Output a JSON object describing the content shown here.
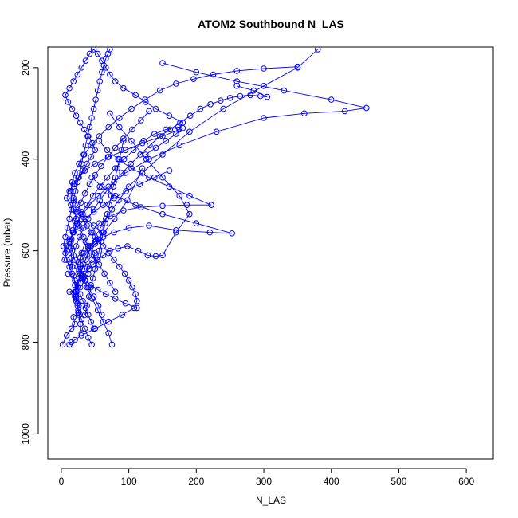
{
  "chart_data": {
    "type": "line",
    "title": "ATOM2 Southbound N_LAS",
    "xlabel": "N_LAS",
    "ylabel": "Pressure (mbar)",
    "xlim": [
      -20,
      640
    ],
    "ylim": [
      1055,
      155
    ],
    "y_reversed": true,
    "grid": false,
    "legend": "none",
    "colors": {
      "series": "#0000ff",
      "axes": "#000000"
    },
    "x_ticks": [
      0,
      100,
      200,
      300,
      400,
      500,
      600
    ],
    "x_tick_labels": [
      "0",
      "100",
      "200",
      "300",
      "400",
      "500",
      "600"
    ],
    "y_ticks": [
      200,
      400,
      600,
      800,
      1000
    ],
    "y_tick_labels": [
      "200",
      "400",
      "600",
      "800",
      "1000"
    ],
    "series": [
      {
        "x": [
          2,
          8,
          15,
          20,
          18,
          25,
          30,
          22,
          12,
          28,
          35,
          40,
          38,
          45,
          50,
          42,
          55,
          60,
          48,
          36,
          30,
          24,
          18,
          14,
          20,
          26,
          32,
          38,
          44,
          50,
          46,
          40,
          34,
          28,
          22,
          16,
          10,
          6,
          12,
          18,
          24,
          30,
          36,
          42,
          48,
          54,
          60,
          66,
          72,
          80,
          92,
          110,
          125,
          140,
          160,
          180,
          175,
          150,
          120,
          95,
          70,
          50,
          35,
          25,
          18,
          12,
          8,
          14,
          22,
          30,
          38,
          46,
          54,
          62,
          70,
          78,
          86,
          94,
          100,
          105,
          110,
          112,
          108,
          90,
          70,
          50,
          30,
          20,
          15,
          12
        ],
        "y": [
          805,
          785,
          770,
          760,
          745,
          735,
          720,
          705,
          690,
          680,
          665,
          650,
          635,
          620,
          605,
          590,
          575,
          560,
          545,
          530,
          515,
          500,
          485,
          470,
          455,
          440,
          425,
          410,
          395,
          380,
          365,
          350,
          335,
          320,
          305,
          290,
          275,
          260,
          245,
          230,
          215,
          200,
          185,
          170,
          160,
          170,
          185,
          200,
          215,
          230,
          245,
          260,
          275,
          290,
          305,
          320,
          335,
          350,
          365,
          380,
          395,
          410,
          425,
          440,
          455,
          470,
          485,
          500,
          515,
          530,
          545,
          560,
          575,
          590,
          605,
          620,
          635,
          650,
          665,
          680,
          695,
          710,
          725,
          740,
          755,
          770,
          785,
          795,
          800,
          805
        ]
      },
      {
        "x": [
          45,
          40,
          35,
          30,
          25,
          22,
          20,
          24,
          28,
          33,
          38,
          44,
          50,
          58,
          66,
          75,
          85,
          100,
          120,
          150,
          190,
          240,
          300,
          350,
          380
        ],
        "y": [
          805,
          790,
          770,
          750,
          730,
          710,
          690,
          670,
          650,
          630,
          610,
          590,
          570,
          550,
          530,
          510,
          490,
          460,
          430,
          390,
          340,
          290,
          240,
          200,
          160
        ]
      },
      {
        "x": [
          60,
          55,
          48,
          40,
          32,
          26,
          20,
          16,
          14,
          18,
          24,
          32,
          42,
          55,
          70,
          95,
          130,
          175,
          230,
          300,
          360,
          420,
          452,
          400,
          330,
          260,
          200,
          150
        ],
        "y": [
          740,
          720,
          700,
          680,
          660,
          640,
          620,
          600,
          580,
          560,
          540,
          520,
          500,
          480,
          460,
          430,
          400,
          370,
          340,
          310,
          300,
          295,
          288,
          270,
          250,
          230,
          210,
          190
        ]
      },
      {
        "x": [
          30,
          28,
          26,
          24,
          22,
          24,
          27,
          31,
          36,
          42,
          50,
          62,
          78,
          100,
          130,
          170,
          220,
          253,
          200,
          150,
          110,
          80,
          60,
          45
        ],
        "y": [
          780,
          760,
          740,
          720,
          700,
          680,
          660,
          640,
          620,
          600,
          585,
          570,
          560,
          550,
          545,
          555,
          560,
          562,
          540,
          520,
          500,
          480,
          460,
          440
        ]
      },
      {
        "x": [
          75,
          70,
          62,
          54,
          46,
          38,
          32,
          28,
          30,
          36,
          44,
          56,
          72,
          92,
          118,
          150,
          186,
          222,
          190,
          160,
          130,
          104,
          84,
          68,
          56
        ],
        "y": [
          805,
          780,
          755,
          730,
          705,
          680,
          655,
          630,
          605,
          580,
          560,
          540,
          525,
          512,
          505,
          502,
          500,
          500,
          480,
          460,
          440,
          420,
          400,
          380,
          360
        ]
      },
      {
        "x": [
          20,
          22,
          25,
          28,
          32,
          36,
          41,
          47,
          54,
          62,
          72,
          84,
          98,
          114,
          128,
          140,
          150,
          170,
          190,
          175,
          150,
          126,
          104,
          86,
          72
        ],
        "y": [
          700,
          690,
          680,
          670,
          660,
          650,
          640,
          630,
          620,
          610,
          600,
          595,
          590,
          600,
          610,
          612,
          610,
          560,
          520,
          480,
          440,
          400,
          360,
          330,
          300
        ]
      },
      {
        "x": [
          10,
          14,
          18,
          22,
          27,
          33,
          40,
          48,
          57,
          67,
          78,
          90,
          103,
          117,
          131,
          146,
          161,
          176,
          191,
          206,
          221,
          236,
          250,
          265,
          280,
          295,
          305,
          285,
          260
        ],
        "y": [
          650,
          630,
          610,
          590,
          570,
          550,
          530,
          510,
          490,
          470,
          450,
          430,
          410,
          390,
          370,
          350,
          335,
          320,
          305,
          290,
          280,
          272,
          266,
          262,
          260,
          262,
          264,
          250,
          240
        ]
      },
      {
        "x": [
          5,
          8,
          12,
          17,
          23,
          30,
          38,
          47,
          57,
          68,
          80,
          93,
          107,
          122,
          138,
          155,
          173,
          180,
          170,
          155,
          140,
          125
        ],
        "y": [
          620,
          600,
          580,
          560,
          540,
          520,
          500,
          480,
          460,
          440,
          420,
          400,
          380,
          360,
          345,
          335,
          330,
          332,
          345,
          360,
          375,
          390
        ]
      },
      {
        "x": [
          80,
          72,
          64,
          56,
          48,
          40,
          33,
          27,
          22,
          18,
          15,
          14,
          16,
          20,
          26,
          34,
          44,
          56,
          70,
          86,
          104,
          124,
          146,
          170,
          196,
          225,
          260,
          300,
          350
        ],
        "y": [
          690,
          670,
          650,
          630,
          610,
          590,
          570,
          550,
          530,
          510,
          490,
          470,
          450,
          430,
          410,
          390,
          370,
          350,
          330,
          310,
          290,
          270,
          250,
          235,
          225,
          215,
          207,
          202,
          198
        ]
      },
      {
        "x": [
          112,
          95,
          80,
          66,
          54,
          44,
          36,
          30,
          26,
          24,
          25,
          28,
          33,
          40,
          50,
          63,
          79,
          98,
          120
        ],
        "y": [
          725,
          715,
          705,
          695,
          685,
          675,
          665,
          655,
          645,
          635,
          625,
          615,
          605,
          595,
          580,
          560,
          530,
          490,
          420
        ]
      },
      {
        "x": [
          3,
          6,
          9,
          12,
          15,
          18,
          21,
          24,
          27,
          30,
          33,
          36,
          39,
          42,
          45,
          48,
          51,
          54,
          57,
          60,
          63,
          66,
          69,
          72
        ],
        "y": [
          590,
          570,
          550,
          530,
          510,
          490,
          470,
          450,
          430,
          410,
          390,
          370,
          350,
          330,
          310,
          290,
          270,
          250,
          230,
          210,
          195,
          180,
          170,
          160
        ]
      },
      {
        "x": [
          35,
          38,
          41,
          44,
          47,
          50,
          53,
          56,
          59,
          62,
          65,
          68,
          71,
          74,
          77,
          80,
          83,
          86,
          89,
          92
        ],
        "y": [
          740,
          720,
          700,
          680,
          660,
          640,
          620,
          600,
          580,
          560,
          540,
          520,
          500,
          480,
          460,
          440,
          420,
          400,
          380,
          360
        ]
      },
      {
        "x": [
          48,
          44,
          40,
          36,
          32,
          28,
          24,
          20,
          16,
          12,
          8,
          6,
          8,
          12,
          18,
          26,
          36,
          48,
          62,
          78,
          96,
          116,
          138,
          160
        ],
        "y": [
          770,
          755,
          740,
          725,
          710,
          695,
          680,
          665,
          650,
          635,
          620,
          605,
          590,
          575,
          560,
          545,
          530,
          515,
          500,
          485,
          470,
          455,
          440,
          425
        ]
      },
      {
        "x": [
          26,
          24,
          22,
          20,
          18,
          16,
          15,
          14,
          15,
          17,
          20,
          24,
          29,
          35,
          42,
          50,
          59,
          69,
          80,
          92,
          105,
          118,
          130
        ],
        "y": [
          735,
          715,
          695,
          675,
          655,
          635,
          615,
          595,
          575,
          555,
          535,
          515,
          495,
          475,
          455,
          435,
          415,
          395,
          375,
          355,
          335,
          315,
          295
        ]
      }
    ]
  }
}
